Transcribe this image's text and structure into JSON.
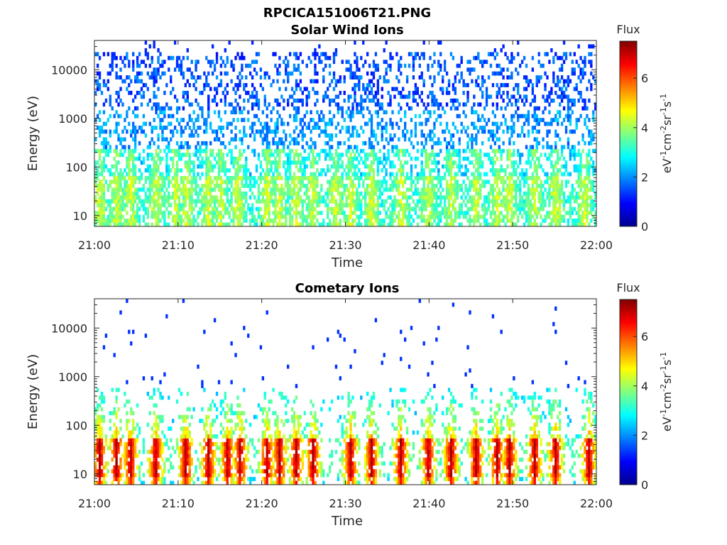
{
  "figure_title": "RPCICA151006T21.PNG",
  "chart_data": [
    {
      "type": "heatmap",
      "title": "Solar Wind Ions",
      "xlabel": "Time",
      "ylabel": "Energy (eV)",
      "x_range": [
        "21:00",
        "22:00"
      ],
      "x_ticks": [
        "21:00",
        "21:10",
        "21:20",
        "21:30",
        "21:40",
        "21:50",
        "22:00"
      ],
      "y_scale": "log",
      "ylim": [
        6,
        40000
      ],
      "y_ticks": [
        {
          "value": 10,
          "label": "10"
        },
        {
          "value": 100,
          "label": "100"
        },
        {
          "value": 1000,
          "label": "1000"
        },
        {
          "value": 10000,
          "label": "10000"
        }
      ],
      "colorbar": {
        "title": "Flux",
        "range": [
          0,
          7.5
        ],
        "ticks": [
          {
            "value": 0,
            "label": "0"
          },
          {
            "value": 2,
            "label": "2"
          },
          {
            "value": 4,
            "label": "4"
          },
          {
            "value": 6,
            "label": "6"
          }
        ],
        "colormap": "jet"
      },
      "bursts_minutes": [
        0.5,
        2.5,
        4.2,
        7.2,
        9.5,
        11,
        13.5,
        15,
        17,
        20.5,
        22,
        24,
        26,
        28.7,
        30.5,
        33,
        36.5,
        39.8,
        42.5,
        45.5,
        48,
        49.5,
        52.5,
        55,
        58.5
      ],
      "description": "Sparse blue counts (flux ~1-2) spread 100-20000 eV; cyan-green (flux ~2-4) band below ~200 eV with occasional yellow bursts"
    },
    {
      "type": "heatmap",
      "title": "Cometary Ions",
      "xlabel": "Time",
      "ylabel": "Energy (eV)",
      "x_range": [
        "21:00",
        "22:00"
      ],
      "x_ticks": [
        "21:00",
        "21:10",
        "21:20",
        "21:30",
        "21:40",
        "21:50",
        "22:00"
      ],
      "y_scale": "log",
      "ylim": [
        6,
        40000
      ],
      "y_ticks": [
        {
          "value": 10,
          "label": "10"
        },
        {
          "value": 100,
          "label": "100"
        },
        {
          "value": 1000,
          "label": "1000"
        },
        {
          "value": 10000,
          "label": "10000"
        }
      ],
      "colorbar": {
        "title": "Flux",
        "range": [
          0,
          7.5
        ],
        "ticks": [
          {
            "value": 0,
            "label": "0"
          },
          {
            "value": 2,
            "label": "2"
          },
          {
            "value": 4,
            "label": "4"
          },
          {
            "value": 6,
            "label": "6"
          }
        ],
        "colormap": "jet"
      },
      "bursts_minutes": [
        0.5,
        2.5,
        4.2,
        7.2,
        10.8,
        13.5,
        15.8,
        17.3,
        20.5,
        22,
        24,
        26,
        30.5,
        33,
        36.5,
        39.8,
        42.5,
        45.5,
        48,
        49.5,
        52.5,
        55,
        59
      ],
      "description": "Intense red/orange (flux ~6-7) bursts between 8 and 50 eV at roughly 3-minute intervals, with green/cyan tails extending up to ~500 eV and sparse blue counts above 1000 eV"
    }
  ]
}
